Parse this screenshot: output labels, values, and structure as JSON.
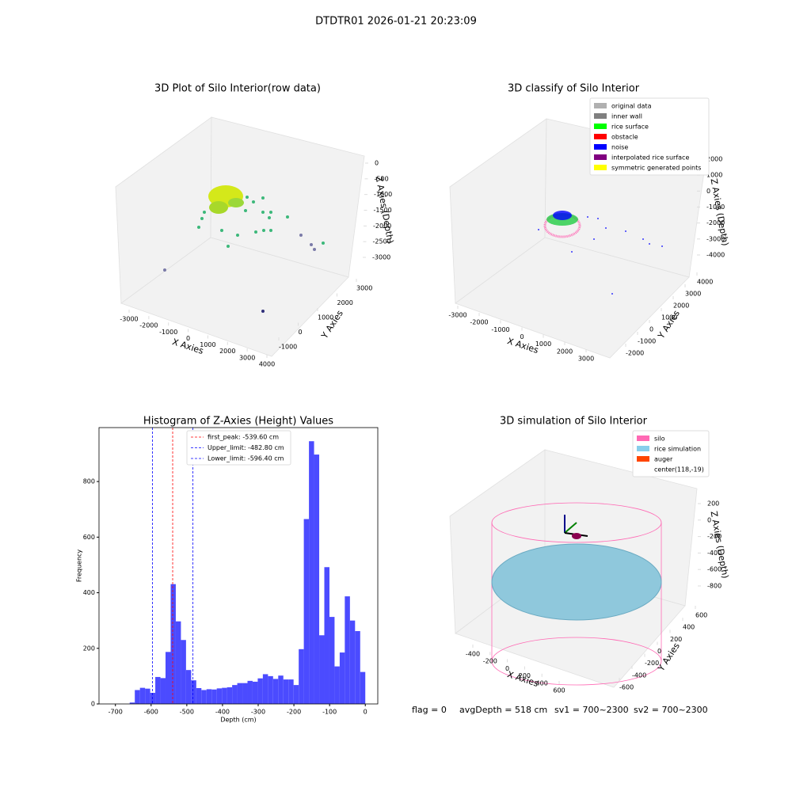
{
  "suptitle": "DTDTR01 2026-01-21 20:23:09",
  "chart_data": [
    {
      "type": "scatter3d",
      "title": "3D Plot of Silo Interior(row data)",
      "xlabel": "X Axies",
      "ylabel": "Y Axies",
      "zlabel": "Z Axies (Depth)",
      "xlim": [
        -3000,
        4000
      ],
      "xticks": [
        -3000,
        -2000,
        -1000,
        0,
        1000,
        2000,
        3000,
        4000
      ],
      "ylim": [
        -1000,
        3000
      ],
      "yticks": [
        -1000,
        0,
        1000,
        2000,
        3000
      ],
      "zlim": [
        0,
        -3000
      ],
      "zticks": [
        0,
        -500,
        -1000,
        -1500,
        -2000,
        -2500,
        -3000
      ]
    },
    {
      "type": "scatter3d",
      "title": "3D classify of Silo Interior",
      "xlabel": "X Axies",
      "ylabel": "Y Axies",
      "zlabel": "Z Axies (Depth)",
      "xlim": [
        -3000,
        3000
      ],
      "xticks": [
        -3000,
        -2000,
        -1000,
        0,
        1000,
        2000,
        3000
      ],
      "ylim": [
        -2000,
        4000
      ],
      "yticks": [
        -2000,
        -1000,
        0,
        1000,
        2000,
        3000,
        4000
      ],
      "zlim": [
        2000,
        -4000
      ],
      "zticks": [
        2000,
        1000,
        0,
        -1000,
        -2000,
        -3000,
        -4000
      ],
      "legend": [
        {
          "name": "original data",
          "color": "#b0b0b0"
        },
        {
          "name": "inner wall",
          "color": "#808080"
        },
        {
          "name": "rice surface",
          "color": "#00ff00"
        },
        {
          "name": "obstacle",
          "color": "#ff0000"
        },
        {
          "name": "noise",
          "color": "#0000ff"
        },
        {
          "name": "interpolated rice surface",
          "color": "#800080"
        },
        {
          "name": "symmetric generated points",
          "color": "#ffff00"
        }
      ]
    },
    {
      "type": "histogram",
      "title": "Histogram of Z-Axies (Height) Values",
      "xlabel": "Depth (cm)",
      "ylabel": "Frequency",
      "color": "#4b4bff",
      "bins": [
        -660,
        -645.7,
        -631.3,
        -617.0,
        -602.6,
        -588.3,
        -573.9,
        -559.6,
        -545.2,
        -530.9,
        -516.5,
        -502.2,
        -487.8,
        -473.5,
        -459.1,
        -444.8,
        -430.4,
        -416.1,
        -401.7,
        -387.4,
        -373.0,
        -358.7,
        -344.3,
        -330.0,
        -315.7,
        -301.3,
        -287.0,
        -272.6,
        -258.3,
        -243.9,
        -229.6,
        -215.2,
        -200.9,
        -186.5,
        -172.2,
        -157.8,
        -143.5,
        -129.1,
        -114.8,
        -100.4,
        -86.1,
        -71.7,
        -57.4,
        -43.0,
        -28.7,
        -14.3,
        0
      ],
      "values": [
        5,
        50,
        58,
        55,
        40,
        97,
        93,
        187,
        431,
        297,
        230,
        122,
        85,
        57,
        50,
        53,
        52,
        56,
        58,
        60,
        68,
        75,
        75,
        83,
        80,
        92,
        107,
        100,
        90,
        102,
        88,
        88,
        68,
        197,
        665,
        945,
        897,
        247,
        492,
        313,
        135,
        185,
        387,
        300,
        262,
        115
      ],
      "xlim": [
        -746,
        35
      ],
      "xticks": [
        -700,
        -600,
        -500,
        -400,
        -300,
        -200,
        -100,
        0
      ],
      "ylim": [
        0,
        994
      ],
      "yticks": [
        0,
        200,
        400,
        600,
        800
      ],
      "vlines": [
        {
          "value": -539.6,
          "label": "first_peak: -539.60 cm",
          "color": "#ff0000"
        },
        {
          "value": -482.8,
          "label": "Upper_limit: -482.80 cm",
          "color": "#0000ff"
        },
        {
          "value": -596.4,
          "label": "Lower_limit: -596.40 cm",
          "color": "#0000ff"
        }
      ]
    },
    {
      "type": "surface3d",
      "title": "3D simulation of Silo Interior",
      "xlabel": "X Axies",
      "ylabel": "Y Axies",
      "zlabel": "Z Axies (Depth)",
      "xlim": [
        -400,
        600
      ],
      "xticks": [
        -400,
        -200,
        0,
        200,
        400,
        600
      ],
      "ylim": [
        -600,
        600
      ],
      "yticks": [
        -600,
        -400,
        -200,
        0,
        200,
        400,
        600
      ],
      "zlim": [
        200,
        -800
      ],
      "zticks": [
        200,
        0,
        -200,
        -400,
        -600,
        -800
      ],
      "legend": [
        {
          "name": "silo",
          "color": "#ff69b4"
        },
        {
          "name": "rice simulation",
          "color": "#87ceeb"
        },
        {
          "name": "auger",
          "color": "#ff4500"
        },
        {
          "name": "center(118,-19)",
          "color": null
        }
      ]
    }
  ],
  "footer": [
    "flag = 0",
    "avgDepth = 518 cm",
    "sv1 = 700~2300",
    "sv2 = 700~2300"
  ]
}
